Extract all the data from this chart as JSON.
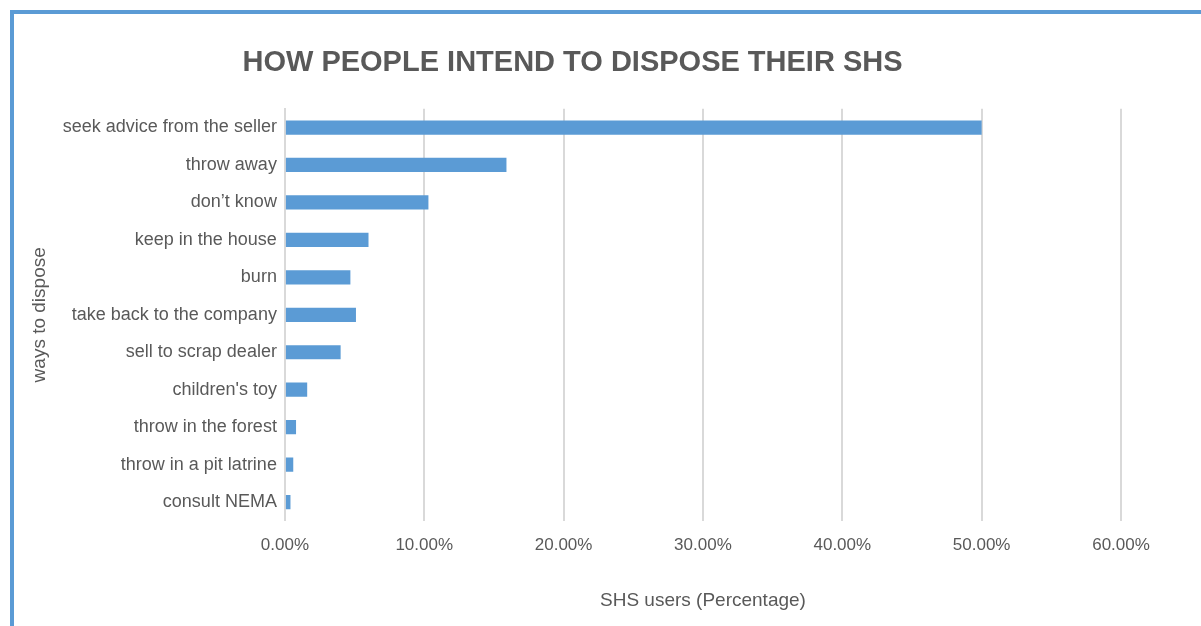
{
  "chart_data": {
    "type": "bar",
    "orientation": "horizontal",
    "title": "HOW PEOPLE INTEND TO DISPOSE THEIR SHS",
    "xlabel": "SHS users (Percentage)",
    "ylabel": "ways to dispose",
    "categories": [
      "seek advice from the seller",
      "throw away",
      "don’t know",
      "keep in the house",
      "burn",
      "take back to the company",
      "sell to scrap dealer",
      "children's toy",
      "throw in the forest",
      "throw in a pit latrine",
      "consult NEMA"
    ],
    "values": [
      50.0,
      15.9,
      10.3,
      6.0,
      4.7,
      5.1,
      4.0,
      1.6,
      0.8,
      0.6,
      0.4
    ],
    "color": "#5b9bd5",
    "xlim": [
      0,
      60
    ],
    "xticks": [
      {
        "value": 0,
        "label": "0.00%"
      },
      {
        "value": 10,
        "label": "10.00%"
      },
      {
        "value": 20,
        "label": "20.00%"
      },
      {
        "value": 30,
        "label": "30.00%"
      },
      {
        "value": 40,
        "label": "40.00%"
      },
      {
        "value": 50,
        "label": "50.00%"
      },
      {
        "value": 60,
        "label": "60.00%"
      }
    ],
    "grid": "x",
    "legend": false
  }
}
